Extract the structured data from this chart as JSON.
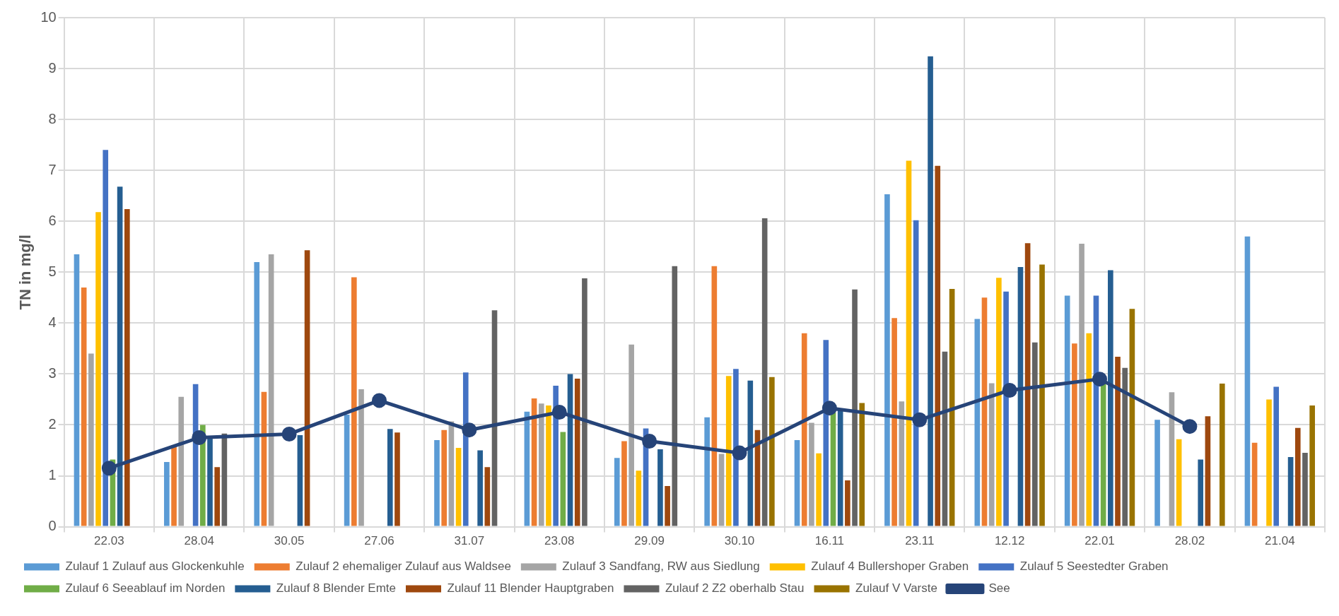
{
  "chart_data": {
    "type": "bar",
    "ylabel": "TN in mg/l",
    "categories": [
      "22.03",
      "28.04",
      "30.05",
      "27.06",
      "31.07",
      "23.08",
      "29.09",
      "30.10",
      "16.11",
      "23.11",
      "12.12",
      "22.01",
      "28.02",
      "21.04"
    ],
    "ylim": [
      0,
      10
    ],
    "yticks": [
      0,
      1,
      2,
      3,
      4,
      5,
      6,
      7,
      8,
      9,
      10
    ],
    "grid": true,
    "legend": "bottom",
    "marker": "circle",
    "series": [
      {
        "name": "Zulauf 1 Zulauf aus Glockenkuhle",
        "color": "#5b9bd5",
        "values": [
          5.35,
          1.27,
          5.2,
          2.2,
          1.7,
          2.26,
          1.35,
          2.15,
          1.7,
          6.53,
          4.08,
          4.54,
          2.1,
          5.7
        ]
      },
      {
        "name": "Zulauf 2 ehemaliger Zulauf aus Waldsee",
        "color": "#ed7d31",
        "values": [
          4.7,
          1.6,
          2.65,
          4.9,
          1.9,
          2.52,
          1.68,
          5.12,
          3.8,
          4.1,
          4.5,
          3.6,
          null,
          1.65
        ]
      },
      {
        "name": "Zulauf 3 Sandfang, RW aus Siedlung",
        "color": "#a5a5a5",
        "values": [
          3.4,
          2.55,
          5.35,
          2.7,
          2.07,
          2.42,
          3.58,
          1.43,
          2.04,
          2.46,
          2.82,
          5.56,
          2.64,
          null
        ]
      },
      {
        "name": "Zulauf 4 Bullershoper Graben",
        "color": "#ffc000",
        "values": [
          6.18,
          null,
          null,
          null,
          1.55,
          2.38,
          1.1,
          2.96,
          1.44,
          7.19,
          4.89,
          3.8,
          1.72,
          2.5
        ]
      },
      {
        "name": "Zulauf 5 Seestedter Graben",
        "color": "#4472c4",
        "values": [
          7.4,
          2.8,
          null,
          null,
          3.03,
          2.77,
          1.93,
          3.1,
          3.67,
          6.02,
          4.62,
          4.54,
          null,
          2.75
        ]
      },
      {
        "name": "Zulauf 6 Seeablauf im Norden",
        "color": "#70ad47",
        "values": [
          1.32,
          2.0,
          null,
          null,
          null,
          1.86,
          null,
          null,
          2.25,
          null,
          null,
          2.85,
          null,
          null
        ]
      },
      {
        "name": "Zulauf 8 Blender Emte",
        "color": "#255e91",
        "values": [
          6.68,
          1.75,
          1.8,
          1.92,
          1.5,
          3.0,
          1.52,
          2.87,
          2.3,
          9.24,
          5.1,
          5.04,
          1.32,
          1.37
        ]
      },
      {
        "name": "Zulauf 11 Blender Hauptgraben",
        "color": "#9e480e",
        "values": [
          6.24,
          1.17,
          5.43,
          1.85,
          1.17,
          2.91,
          0.8,
          1.9,
          0.91,
          7.09,
          5.57,
          3.34,
          2.17,
          1.94
        ]
      },
      {
        "name": "Zulauf 2 Z2 oberhalb Stau",
        "color": "#636363",
        "values": [
          null,
          1.83,
          null,
          null,
          4.25,
          4.88,
          5.12,
          6.06,
          4.66,
          3.44,
          3.62,
          3.12,
          null,
          1.45
        ]
      },
      {
        "name": "Zulauf V Varste",
        "color": "#997300",
        "values": [
          null,
          null,
          null,
          null,
          null,
          null,
          null,
          2.94,
          2.43,
          4.67,
          5.15,
          4.28,
          2.81,
          2.38
        ]
      },
      {
        "name": "See",
        "type": "line",
        "color": "#264478",
        "values": [
          1.15,
          1.75,
          1.82,
          2.48,
          1.9,
          2.25,
          1.68,
          1.45,
          2.33,
          2.1,
          2.68,
          2.9,
          1.97,
          null
        ]
      }
    ]
  }
}
